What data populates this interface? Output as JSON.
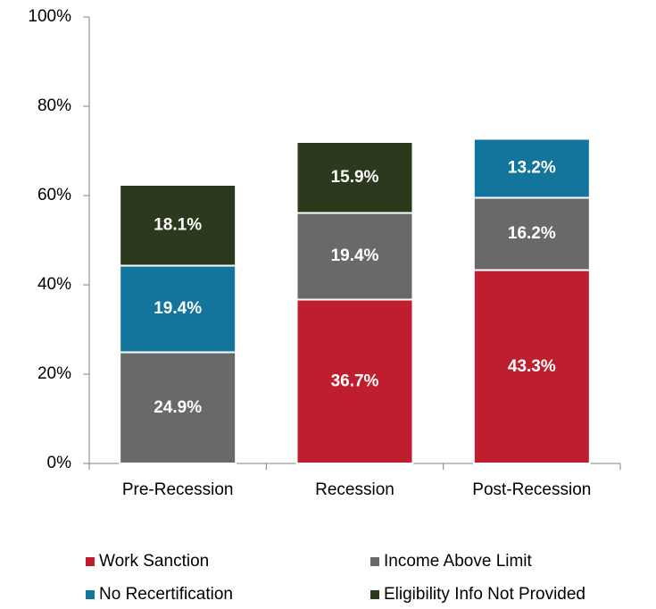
{
  "chart_data": {
    "type": "stacked_bar",
    "categories": [
      "Pre-Recession",
      "Recession",
      "Post-Recession"
    ],
    "series": [
      {
        "name": "Work Sanction",
        "color": "#be1e2d",
        "values": [
          null,
          36.7,
          43.3
        ],
        "value_labels": [
          null,
          "36.7%",
          "43.3%"
        ]
      },
      {
        "name": "Income Above Limit",
        "color": "#696969",
        "values": [
          24.9,
          19.4,
          16.2
        ],
        "value_labels": [
          "24.9%",
          "19.4%",
          "16.2%"
        ]
      },
      {
        "name": "No Recertification",
        "color": "#13759c",
        "values": [
          19.4,
          null,
          13.2
        ],
        "value_labels": [
          "19.4%",
          null,
          "13.2%"
        ]
      },
      {
        "name": "Eligibility Info Not Provided",
        "color": "#2b3a1c",
        "values": [
          18.1,
          15.9,
          null
        ],
        "value_labels": [
          "18.1%",
          "15.9%",
          null
        ]
      }
    ],
    "ylim": [
      0,
      100
    ],
    "yticks": [
      {
        "value": 0,
        "label": "0%"
      },
      {
        "value": 20,
        "label": "20%"
      },
      {
        "value": 40,
        "label": "40%"
      },
      {
        "value": 60,
        "label": "60%"
      },
      {
        "value": 80,
        "label": "80%"
      },
      {
        "value": 100,
        "label": "100%"
      }
    ],
    "grid": false,
    "legend": "bottom"
  }
}
